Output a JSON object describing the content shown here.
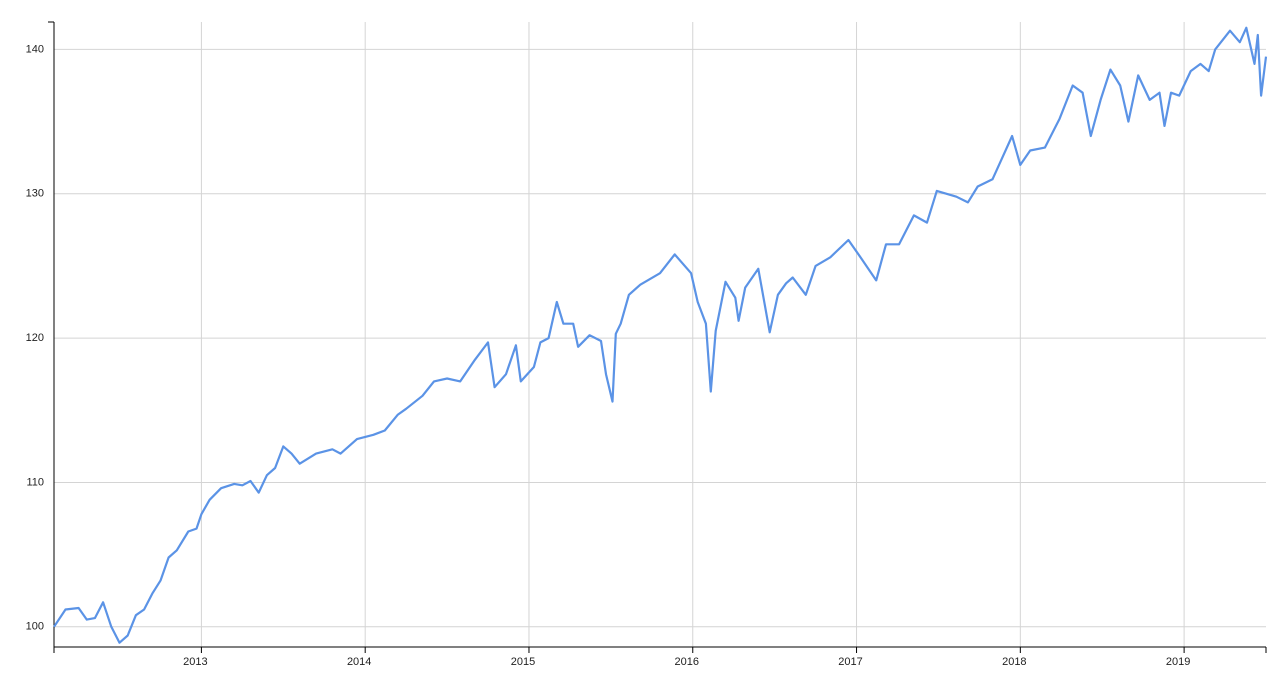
{
  "chart_data": {
    "type": "line",
    "x": [
      2012.1,
      2012.17,
      2012.25,
      2012.3,
      2012.35,
      2012.4,
      2012.45,
      2012.5,
      2012.55,
      2012.6,
      2012.65,
      2012.7,
      2012.75,
      2012.8,
      2012.85,
      2012.92,
      2012.97,
      2013.0,
      2013.05,
      2013.12,
      2013.2,
      2013.25,
      2013.3,
      2013.35,
      2013.4,
      2013.45,
      2013.5,
      2013.55,
      2013.6,
      2013.7,
      2013.8,
      2013.85,
      2013.95,
      2014.05,
      2014.12,
      2014.2,
      2014.25,
      2014.35,
      2014.42,
      2014.5,
      2014.58,
      2014.67,
      2014.75,
      2014.79,
      2014.86,
      2014.92,
      2014.95,
      2015.03,
      2015.07,
      2015.12,
      2015.17,
      2015.21,
      2015.27,
      2015.3,
      2015.37,
      2015.44,
      2015.47,
      2015.51,
      2015.53,
      2015.56,
      2015.61,
      2015.68,
      2015.8,
      2015.89,
      2015.99,
      2016.03,
      2016.08,
      2016.11,
      2016.14,
      2016.2,
      2016.26,
      2016.28,
      2016.32,
      2016.4,
      2016.44,
      2016.47,
      2016.52,
      2016.57,
      2016.61,
      2016.69,
      2016.75,
      2016.84,
      2016.95,
      2017.03,
      2017.12,
      2017.18,
      2017.26,
      2017.35,
      2017.43,
      2017.49,
      2017.61,
      2017.68,
      2017.74,
      2017.83,
      2017.89,
      2017.95,
      2018.0,
      2018.06,
      2018.15,
      2018.24,
      2018.32,
      2018.38,
      2018.43,
      2018.49,
      2018.55,
      2018.61,
      2018.66,
      2018.72,
      2018.79,
      2018.85,
      2018.88,
      2018.92,
      2018.97,
      2019.04,
      2019.1,
      2019.15,
      2019.19,
      2019.28,
      2019.34,
      2019.38,
      2019.43,
      2019.45,
      2019.47,
      2019.5
    ],
    "series": [
      {
        "color": "#5b93e6",
        "values": [
          100.0,
          101.2,
          101.3,
          100.5,
          100.6,
          101.7,
          100.0,
          98.9,
          99.4,
          100.8,
          101.2,
          102.3,
          103.2,
          104.8,
          105.3,
          106.6,
          106.8,
          107.8,
          108.8,
          109.6,
          109.9,
          109.8,
          110.1,
          109.3,
          110.5,
          111.0,
          112.5,
          112.0,
          111.3,
          112.0,
          112.3,
          112.0,
          113.0,
          113.3,
          113.6,
          114.7,
          115.1,
          116.0,
          117.0,
          117.2,
          117.0,
          118.5,
          119.7,
          116.6,
          117.5,
          119.5,
          117.0,
          118.0,
          119.7,
          120.0,
          122.5,
          121.0,
          121.0,
          119.4,
          120.2,
          119.8,
          117.5,
          115.6,
          120.3,
          121.0,
          123.0,
          123.7,
          124.5,
          125.8,
          124.5,
          122.5,
          121.0,
          116.3,
          120.5,
          123.9,
          122.8,
          121.2,
          123.5,
          124.8,
          122.3,
          120.4,
          123.0,
          123.8,
          124.2,
          123.0,
          125.0,
          125.6,
          126.8,
          125.5,
          124.0,
          126.5,
          126.5,
          128.5,
          128.0,
          130.2,
          129.8,
          129.4,
          130.5,
          131.0,
          132.5,
          134.0,
          132.0,
          133.0,
          133.2,
          135.2,
          137.5,
          137.0,
          134.0,
          136.5,
          138.6,
          137.5,
          135.0,
          138.2,
          136.5,
          137.0,
          134.7,
          137.0,
          136.8,
          138.5,
          139.0,
          138.5,
          140.0,
          141.3,
          140.5,
          141.5,
          139.0,
          141.0,
          136.8,
          139.5
        ]
      }
    ],
    "xlim": [
      2012.1,
      2019.5
    ],
    "xticks": [
      2013,
      2014,
      2015,
      2016,
      2017,
      2018,
      2019
    ],
    "ylim": [
      98.6,
      141.9
    ],
    "yticks": [
      100,
      110,
      120,
      130,
      140
    ],
    "grid": true
  }
}
